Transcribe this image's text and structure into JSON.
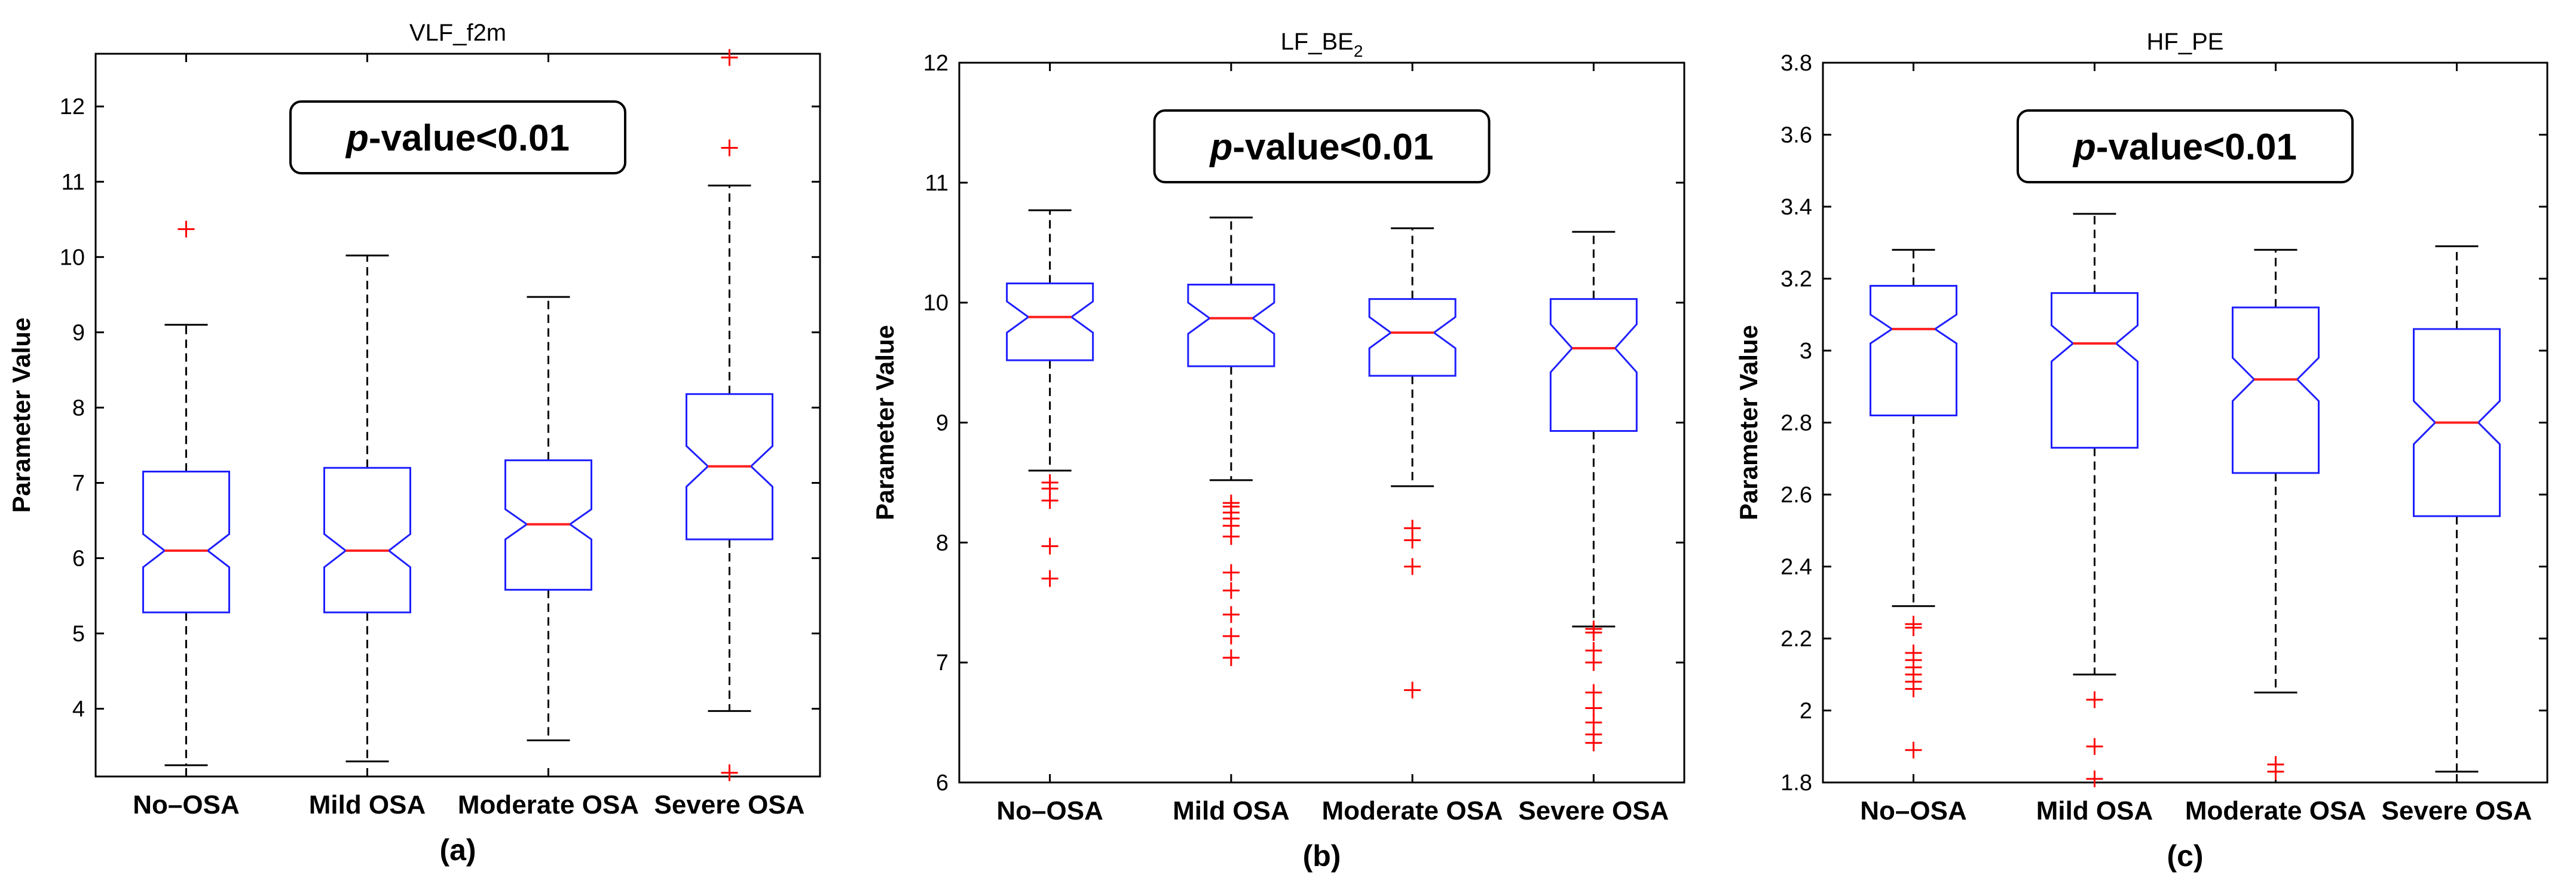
{
  "chart_data": [
    {
      "type": "boxplot",
      "title": "VLF_f2m",
      "ylabel": "Parameter Value",
      "caption": "(a)",
      "annotation": {
        "italic": "p",
        "text": "-value<0.01"
      },
      "ylim": [
        3.1,
        12.7
      ],
      "yticks": [
        4,
        5,
        6,
        7,
        8,
        9,
        10,
        11,
        12
      ],
      "notched": true,
      "categories": [
        "No–OSA",
        "Mild OSA",
        "Moderate OSA",
        "Severe OSA"
      ],
      "series": [
        {
          "whisker_low": 3.25,
          "q1": 5.28,
          "median": 6.1,
          "q3": 7.15,
          "whisker_high": 9.1,
          "notch": [
            5.88,
            6.32
          ],
          "outliers": [
            10.37
          ]
        },
        {
          "whisker_low": 3.3,
          "q1": 5.28,
          "median": 6.1,
          "q3": 7.2,
          "whisker_high": 10.02,
          "notch": [
            5.88,
            6.32
          ],
          "outliers": []
        },
        {
          "whisker_low": 3.58,
          "q1": 5.58,
          "median": 6.45,
          "q3": 7.3,
          "whisker_high": 9.47,
          "notch": [
            6.25,
            6.65
          ],
          "outliers": []
        },
        {
          "whisker_low": 3.97,
          "q1": 6.25,
          "median": 7.22,
          "q3": 8.18,
          "whisker_high": 10.95,
          "notch": [
            6.95,
            7.49
          ],
          "outliers": [
            3.15,
            11.45,
            12.65
          ]
        }
      ]
    },
    {
      "type": "boxplot",
      "title": "LF_BE",
      "title_subscript": "2",
      "ylabel": "Parameter Value",
      "caption": "(b)",
      "annotation": {
        "italic": "p",
        "text": "-value<0.01"
      },
      "ylim": [
        6,
        12
      ],
      "yticks": [
        6,
        7,
        8,
        9,
        10,
        11,
        12
      ],
      "notched": true,
      "categories": [
        "No–OSA",
        "Mild OSA",
        "Moderate OSA",
        "Severe OSA"
      ],
      "series": [
        {
          "whisker_low": 8.6,
          "q1": 9.52,
          "median": 9.88,
          "q3": 10.16,
          "whisker_high": 10.77,
          "notch": [
            9.75,
            10.01
          ],
          "outliers": [
            8.5,
            8.45,
            8.35,
            7.97,
            7.7
          ]
        },
        {
          "whisker_low": 8.52,
          "q1": 9.47,
          "median": 9.87,
          "q3": 10.15,
          "whisker_high": 10.71,
          "notch": [
            9.74,
            10.0
          ],
          "outliers": [
            8.33,
            8.3,
            8.25,
            8.2,
            8.14,
            8.05,
            7.75,
            7.6,
            7.4,
            7.22,
            7.04
          ]
        },
        {
          "whisker_low": 8.47,
          "q1": 9.39,
          "median": 9.75,
          "q3": 10.03,
          "whisker_high": 10.62,
          "notch": [
            9.62,
            9.88
          ],
          "outliers": [
            8.12,
            8.02,
            7.8,
            6.77
          ]
        },
        {
          "whisker_low": 7.3,
          "q1": 8.93,
          "median": 9.62,
          "q3": 10.03,
          "whisker_high": 10.59,
          "notch": [
            9.42,
            9.82
          ],
          "outliers": [
            7.28,
            7.25,
            7.1,
            7.0,
            6.75,
            6.62,
            6.5,
            6.4,
            6.33
          ]
        }
      ]
    },
    {
      "type": "boxplot",
      "title": "HF_PE",
      "ylabel": "Parameter Value",
      "caption": "(c)",
      "annotation": {
        "italic": "p",
        "text": "-value<0.01"
      },
      "ylim": [
        1.8,
        3.8
      ],
      "yticks": [
        1.8,
        2,
        2.2,
        2.4,
        2.6,
        2.8,
        3,
        3.2,
        3.4,
        3.6,
        3.8
      ],
      "notched": true,
      "categories": [
        "No–OSA",
        "Mild OSA",
        "Moderate OSA",
        "Severe OSA"
      ],
      "series": [
        {
          "whisker_low": 2.29,
          "q1": 2.82,
          "median": 3.06,
          "q3": 3.18,
          "whisker_high": 3.28,
          "notch": [
            3.02,
            3.1
          ],
          "outliers": [
            2.24,
            2.23,
            2.16,
            2.14,
            2.12,
            2.1,
            2.08,
            2.06,
            1.89
          ]
        },
        {
          "whisker_low": 2.1,
          "q1": 2.73,
          "median": 3.02,
          "q3": 3.16,
          "whisker_high": 3.38,
          "notch": [
            2.97,
            3.07
          ],
          "outliers": [
            2.03,
            1.9,
            1.81
          ]
        },
        {
          "whisker_low": 2.05,
          "q1": 2.66,
          "median": 2.92,
          "q3": 3.12,
          "whisker_high": 3.28,
          "notch": [
            2.86,
            2.98
          ],
          "outliers": [
            1.85,
            1.83
          ]
        },
        {
          "whisker_low": 1.83,
          "q1": 2.54,
          "median": 2.8,
          "q3": 3.06,
          "whisker_high": 3.29,
          "notch": [
            2.74,
            2.86
          ],
          "outliers": []
        }
      ]
    }
  ],
  "colors": {
    "box": "#1f1fff",
    "median": "#ff2020",
    "outlier": "#ff0000",
    "whisker": "#000000",
    "axes": "#000000"
  }
}
